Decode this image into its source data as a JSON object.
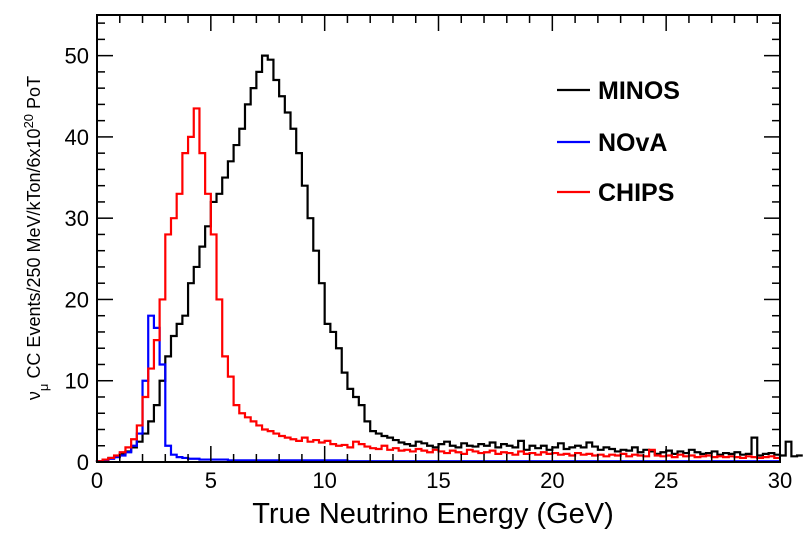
{
  "chart_data": {
    "type": "line",
    "xlabel": "True Neutrino Energy (GeV)",
    "ylabel": {
      "nu": "ν",
      "mu": "μ",
      "main": " CC Events/250 MeV/kTon/6x10",
      "exp": "20",
      "tail": " PoT"
    },
    "xlim": [
      0,
      30
    ],
    "ylim": [
      0,
      55
    ],
    "bin_width": 0.25,
    "xticks": [
      0,
      5,
      10,
      15,
      20,
      25,
      30
    ],
    "yticks": [
      0,
      10,
      20,
      30,
      40,
      50
    ],
    "xtick_labels": [
      "0",
      "5",
      "10",
      "15",
      "20",
      "25",
      "30"
    ],
    "ytick_labels": [
      "0",
      "10",
      "20",
      "30",
      "40",
      "50"
    ],
    "legend_position": "top-right",
    "series": [
      {
        "name": "MINOS",
        "color": "#000000",
        "values": [
          0.1,
          0.3,
          0.5,
          0.7,
          1.0,
          1.3,
          1.8,
          2.5,
          3.5,
          5.0,
          7.0,
          10.0,
          13.0,
          15.5,
          17.0,
          18.0,
          22.0,
          24.0,
          26.5,
          29.0,
          32.0,
          33.0,
          35.0,
          37.0,
          39.0,
          41.0,
          44.0,
          46.0,
          48.0,
          50.0,
          49.5,
          47.0,
          45.0,
          43.0,
          41.0,
          38.0,
          34.0,
          30.0,
          26.0,
          22.0,
          17.0,
          16.0,
          14.0,
          11.0,
          9.0,
          8.0,
          7.0,
          5.0,
          3.8,
          3.5,
          3.2,
          3.0,
          2.7,
          2.4,
          2.2,
          2.0,
          2.5,
          2.3,
          2.0,
          1.8,
          2.2,
          2.5,
          2.0,
          1.8,
          2.3,
          2.0,
          1.9,
          2.2,
          2.0,
          2.4,
          1.8,
          2.2,
          2.0,
          1.8,
          2.6,
          1.5,
          2.0,
          1.7,
          2.0,
          1.5,
          1.8,
          2.3,
          1.6,
          1.8,
          2.0,
          1.8,
          2.4,
          1.9,
          1.5,
          1.8,
          1.6,
          1.3,
          1.5,
          1.4,
          1.8,
          1.2,
          1.5,
          1.3,
          1.0,
          1.2,
          1.4,
          1.0,
          1.3,
          1.1,
          1.5,
          1.2,
          1.0,
          1.1,
          1.3,
          0.9,
          1.1,
          1.0,
          1.2,
          0.9,
          1.0,
          3.0,
          0.8,
          1.0,
          1.1,
          0.9,
          0.8,
          2.5,
          0.7,
          0.8
        ]
      },
      {
        "name": "NOvA",
        "color": "#0000ff",
        "values": [
          0.1,
          0.2,
          0.4,
          0.6,
          0.8,
          1.2,
          2.0,
          3.5,
          10.0,
          18.0,
          16.5,
          12.0,
          2.0,
          0.9,
          0.6,
          0.5,
          0.4,
          0.4,
          0.3,
          0.3,
          0.3,
          0.3,
          0.3,
          0.2,
          0.2,
          0.2,
          0.2,
          0.2,
          0.2,
          0.2,
          0.2,
          0.2,
          0.2,
          0.2,
          0.2,
          0.2,
          0.2,
          0.2,
          0.2,
          0.2,
          0.2,
          0.2,
          0.2,
          0.2,
          0.1,
          0.1,
          0.1,
          0.1,
          0.1,
          0.1,
          0.1,
          0.1,
          0.1,
          0.1,
          0.1,
          0.1,
          0.1,
          0.1,
          0.1,
          0.1,
          0.1,
          0.1,
          0.1,
          0.1,
          0.1,
          0.1,
          0.1,
          0.1,
          0.1,
          0.1,
          0.1,
          0.1,
          0.1,
          0.1,
          0.1,
          0.1,
          0.1,
          0.1,
          0.1,
          0.1,
          0.1,
          0.1,
          0.1,
          0.1,
          0.1,
          0.1,
          0.1,
          0.1,
          0.1,
          0.1,
          0.1,
          0.1,
          0.1,
          0.1,
          0.1,
          0.1,
          0.1,
          0.1,
          0.1,
          0.1,
          0.1,
          0.1,
          0.1,
          0.1,
          0.1,
          0.1,
          0.1,
          0.1,
          0.1,
          0.1,
          0.1,
          0.1,
          0.1,
          0.1,
          0.1,
          0.1,
          0.1,
          0.1,
          0.1,
          0.1
        ]
      },
      {
        "name": "CHIPS",
        "color": "#ff0000",
        "values": [
          0.1,
          0.3,
          0.5,
          0.8,
          1.2,
          1.8,
          2.8,
          4.5,
          8.0,
          11.5,
          15.0,
          20.0,
          28.0,
          30.0,
          33.0,
          38.0,
          40.0,
          43.5,
          38.0,
          33.0,
          28.0,
          20.0,
          13.0,
          10.5,
          7.0,
          6.0,
          5.5,
          5.0,
          4.5,
          4.0,
          3.8,
          3.5,
          3.2,
          3.0,
          2.8,
          2.6,
          3.0,
          2.5,
          2.7,
          2.4,
          2.6,
          2.2,
          2.0,
          2.1,
          1.8,
          2.5,
          2.2,
          1.9,
          1.7,
          1.6,
          2.0,
          1.5,
          1.7,
          1.4,
          1.5,
          1.3,
          1.6,
          1.4,
          1.2,
          1.5,
          1.3,
          1.1,
          1.4,
          1.2,
          1.0,
          1.5,
          1.3,
          1.1,
          1.2,
          1.4,
          1.0,
          1.2,
          1.1,
          0.9,
          1.3,
          1.0,
          1.1,
          0.9,
          1.2,
          1.0,
          1.1,
          0.9,
          1.0,
          0.8,
          1.1,
          0.9,
          1.0,
          0.8,
          0.9,
          0.7,
          0.9,
          0.8,
          1.0,
          0.7,
          0.9,
          0.8,
          0.7,
          1.5,
          0.8,
          0.7,
          0.8,
          0.6,
          0.9,
          0.7,
          0.8,
          0.6,
          0.7,
          0.8,
          0.6,
          0.7,
          0.6,
          0.7,
          0.6,
          0.5,
          0.7,
          0.6,
          0.5,
          0.6,
          0.7,
          0.5
        ]
      }
    ]
  }
}
